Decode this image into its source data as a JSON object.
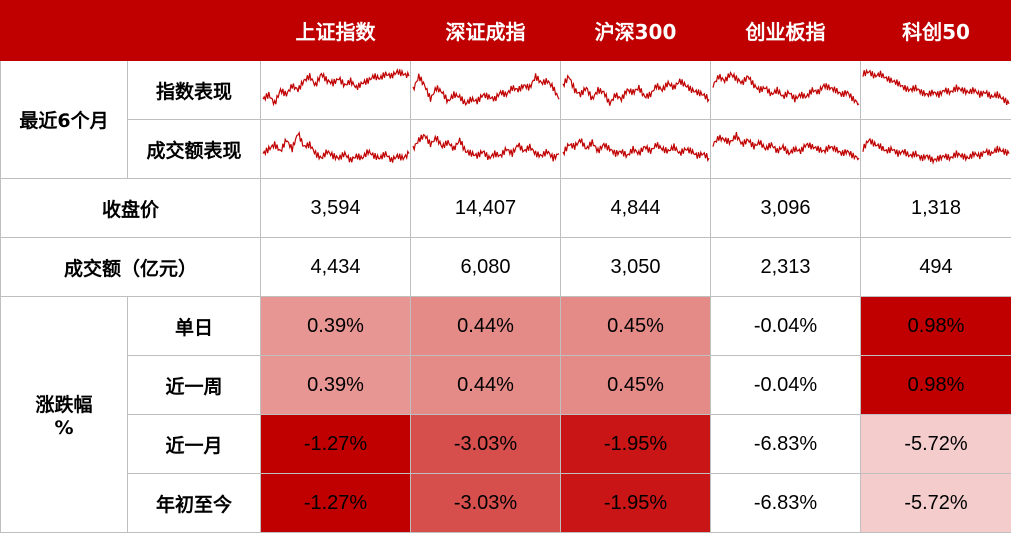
{
  "indices": [
    "上证指数",
    "深证成指",
    "沪深300",
    "创业板指",
    "科创50"
  ],
  "row_labels": {
    "recent6m": "最近6个月",
    "index_perf": "指数表现",
    "volume_perf": "成交额表现",
    "close": "收盘价",
    "turnover": "成交额（亿元）",
    "change_l1": "涨跌幅",
    "change_l2": "%",
    "day": "单日",
    "week": "近一周",
    "month": "近一月",
    "ytd": "年初至今"
  },
  "colors": {
    "header_bg": "#c00000",
    "sparkline": "#c00000",
    "border": "#bfbfbf"
  },
  "chart_data": {
    "type": "table",
    "columns": [
      "上证指数",
      "深证成指",
      "沪深300",
      "创业板指",
      "科创50"
    ],
    "close": [
      "3,594",
      "14,407",
      "4,844",
      "3,096",
      "1,318"
    ],
    "turnover": [
      "4,434",
      "6,080",
      "3,050",
      "2,313",
      "494"
    ],
    "day": [
      "0.39%",
      "0.44%",
      "0.45%",
      "-0.04%",
      "0.98%"
    ],
    "week": [
      "0.39%",
      "0.44%",
      "0.45%",
      "-0.04%",
      "0.98%"
    ],
    "month": [
      "-1.27%",
      "-3.03%",
      "-1.95%",
      "-6.83%",
      "-5.72%"
    ],
    "ytd": [
      "-1.27%",
      "-3.03%",
      "-1.95%",
      "-6.83%",
      "-5.72%"
    ],
    "cell_colors": {
      "day": [
        "#e89694",
        "#e48b88",
        "#e48b88",
        "#ffffff",
        "#c00000"
      ],
      "week": [
        "#e89694",
        "#e48b88",
        "#e48b88",
        "#ffffff",
        "#c00000"
      ],
      "month": [
        "#c00000",
        "#d64f4d",
        "#c91515",
        "#ffffff",
        "#f4cccc"
      ],
      "ytd": [
        "#c00000",
        "#d64f4d",
        "#c91515",
        "#ffffff",
        "#f4cccc"
      ]
    },
    "sparklines": {
      "index_perf": [
        [
          0.3,
          0.4,
          0.2,
          0.5,
          0.4,
          0.6,
          0.5,
          0.7,
          0.8,
          0.6,
          0.85,
          0.7,
          0.65,
          0.75,
          0.6,
          0.7,
          0.55,
          0.65,
          0.7,
          0.8,
          0.75,
          0.85,
          0.8,
          0.9,
          0.85,
          0.8
        ],
        [
          0.5,
          0.8,
          0.6,
          0.3,
          0.55,
          0.45,
          0.25,
          0.4,
          0.35,
          0.2,
          0.3,
          0.25,
          0.4,
          0.35,
          0.3,
          0.45,
          0.4,
          0.55,
          0.5,
          0.6,
          0.55,
          0.8,
          0.65,
          0.7,
          0.55,
          0.3
        ],
        [
          0.6,
          0.8,
          0.5,
          0.4,
          0.55,
          0.3,
          0.5,
          0.45,
          0.2,
          0.4,
          0.3,
          0.5,
          0.45,
          0.55,
          0.35,
          0.4,
          0.6,
          0.5,
          0.65,
          0.55,
          0.7,
          0.6,
          0.5,
          0.45,
          0.4,
          0.3
        ],
        [
          0.6,
          0.8,
          0.7,
          0.85,
          0.75,
          0.65,
          0.8,
          0.6,
          0.5,
          0.55,
          0.4,
          0.5,
          0.35,
          0.45,
          0.3,
          0.4,
          0.35,
          0.5,
          0.45,
          0.6,
          0.55,
          0.5,
          0.4,
          0.45,
          0.3,
          0.2
        ],
        [
          0.85,
          0.9,
          0.8,
          0.85,
          0.75,
          0.7,
          0.65,
          0.55,
          0.5,
          0.55,
          0.45,
          0.4,
          0.45,
          0.4,
          0.5,
          0.45,
          0.55,
          0.5,
          0.45,
          0.5,
          0.4,
          0.45,
          0.35,
          0.4,
          0.3,
          0.2
        ]
      ],
      "volume_perf": [
        [
          0.4,
          0.5,
          0.6,
          0.45,
          0.7,
          0.5,
          0.85,
          0.55,
          0.6,
          0.4,
          0.3,
          0.45,
          0.35,
          0.3,
          0.4,
          0.25,
          0.35,
          0.3,
          0.45,
          0.35,
          0.3,
          0.4,
          0.25,
          0.35,
          0.3,
          0.4
        ],
        [
          0.5,
          0.7,
          0.8,
          0.6,
          0.75,
          0.55,
          0.65,
          0.5,
          0.7,
          0.45,
          0.4,
          0.35,
          0.45,
          0.3,
          0.4,
          0.35,
          0.5,
          0.4,
          0.6,
          0.45,
          0.55,
          0.4,
          0.35,
          0.45,
          0.3,
          0.4
        ],
        [
          0.4,
          0.6,
          0.55,
          0.7,
          0.5,
          0.65,
          0.45,
          0.6,
          0.5,
          0.4,
          0.45,
          0.35,
          0.5,
          0.4,
          0.55,
          0.45,
          0.6,
          0.5,
          0.45,
          0.55,
          0.4,
          0.5,
          0.45,
          0.35,
          0.4,
          0.3
        ],
        [
          0.6,
          0.75,
          0.7,
          0.65,
          0.8,
          0.6,
          0.7,
          0.55,
          0.65,
          0.5,
          0.6,
          0.45,
          0.55,
          0.4,
          0.5,
          0.45,
          0.6,
          0.55,
          0.5,
          0.45,
          0.55,
          0.5,
          0.4,
          0.45,
          0.35,
          0.3
        ],
        [
          0.5,
          0.7,
          0.6,
          0.55,
          0.45,
          0.5,
          0.4,
          0.45,
          0.35,
          0.4,
          0.3,
          0.35,
          0.25,
          0.3,
          0.35,
          0.3,
          0.4,
          0.35,
          0.3,
          0.4,
          0.35,
          0.45,
          0.4,
          0.5,
          0.45,
          0.4
        ]
      ]
    }
  }
}
